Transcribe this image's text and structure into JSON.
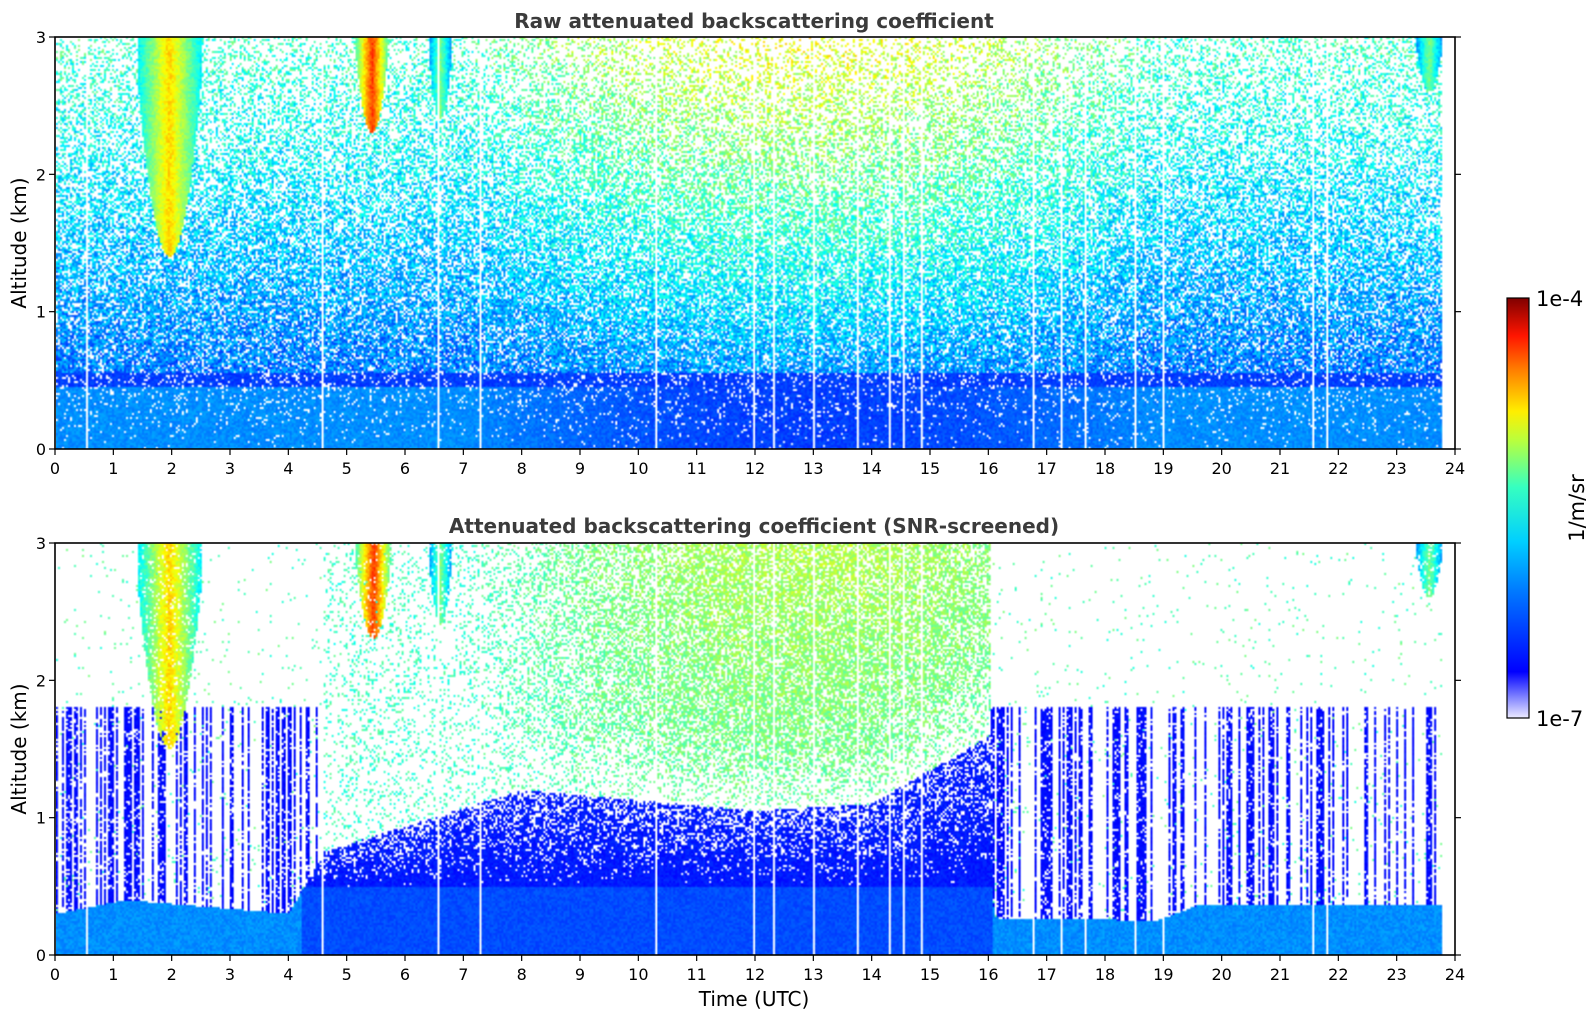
{
  "figure": {
    "xlabel": "Time (UTC)",
    "colorbar": {
      "label": "1/m/sr",
      "max_label": "1e-4",
      "min_label": "1e-7",
      "scale": "log",
      "colormap": "jet",
      "range": [
        1e-07,
        0.0001
      ]
    }
  },
  "chart_data": [
    {
      "type": "heatmap",
      "title": "Raw attenuated backscattering coefficient",
      "xlabel": "",
      "ylabel": "Altitude (km)",
      "xlim": [
        0,
        24
      ],
      "ylim": [
        0,
        3
      ],
      "xticks": [
        "0",
        "1",
        "2",
        "3",
        "4",
        "5",
        "6",
        "7",
        "8",
        "9",
        "10",
        "11",
        "12",
        "13",
        "14",
        "15",
        "16",
        "17",
        "18",
        "19",
        "20",
        "21",
        "22",
        "23",
        "24"
      ],
      "yticks": [
        "0",
        "1",
        "2",
        "3"
      ],
      "data_extent_x": [
        0,
        23.8
      ],
      "background_layer": {
        "top_km": 0.5,
        "description": ""
      },
      "cloud_features": [
        {
          "x_start": 1.4,
          "x_end": 2.5,
          "y_bottom": 1.4,
          "y_top": 3.0,
          "peak": "1e-5"
        },
        {
          "x_start": 5.15,
          "x_end": 5.7,
          "y_bottom": 2.3,
          "y_top": 3.0,
          "peak": "3e-5"
        },
        {
          "x_start": 6.4,
          "x_end": 6.8,
          "y_bottom": 2.4,
          "y_top": 3.0,
          "peak": "3e-6"
        },
        {
          "x_start": 23.35,
          "x_end": 23.8,
          "y_bottom": 2.6,
          "y_top": 3.0,
          "peak": "3e-6"
        }
      ],
      "missing_profiles_utc": [
        0.5,
        4.55,
        6.55,
        7.27,
        10.3,
        11.95,
        12.3,
        12.98,
        13.75,
        14.3,
        14.55,
        14.85,
        16.75,
        17.25,
        17.65,
        18.5,
        19.0,
        21.55,
        21.8
      ]
    },
    {
      "type": "heatmap",
      "title": "Attenuated backscattering coefficient (SNR-screened)",
      "xlabel": "Time (UTC)",
      "ylabel": "Altitude (km)",
      "xlim": [
        0,
        24
      ],
      "ylim": [
        0,
        3
      ],
      "xticks": [
        "0",
        "1",
        "2",
        "3",
        "4",
        "5",
        "6",
        "7",
        "8",
        "9",
        "10",
        "11",
        "12",
        "13",
        "14",
        "15",
        "16",
        "17",
        "18",
        "19",
        "20",
        "21",
        "22",
        "23",
        "24"
      ],
      "yticks": [
        "0",
        "1",
        "2",
        "3"
      ],
      "data_extent_x": [
        0,
        23.8
      ],
      "boundary_layer_top_km": [
        {
          "x": 0.0,
          "y": 0.3
        },
        {
          "x": 1.2,
          "y": 0.4
        },
        {
          "x": 4.0,
          "y": 0.3
        },
        {
          "x": 4.6,
          "y": 0.75
        },
        {
          "x": 8.0,
          "y": 1.2
        },
        {
          "x": 12.0,
          "y": 1.05
        },
        {
          "x": 14.0,
          "y": 1.1
        },
        {
          "x": 16.05,
          "y": 1.6
        },
        {
          "x": 16.1,
          "y": 0.27
        },
        {
          "x": 18.9,
          "y": 0.25
        },
        {
          "x": 19.6,
          "y": 0.36
        },
        {
          "x": 23.8,
          "y": 0.36
        }
      ],
      "cloud_features": [
        {
          "x_start": 1.4,
          "x_end": 2.5,
          "y_bottom": 1.5,
          "y_top": 3.0,
          "peak": "1e-5"
        },
        {
          "x_start": 5.15,
          "x_end": 5.75,
          "y_bottom": 2.3,
          "y_top": 3.0,
          "peak": "3e-5"
        },
        {
          "x_start": 6.4,
          "x_end": 6.8,
          "y_bottom": 2.4,
          "y_top": 3.0,
          "peak": "3e-6"
        },
        {
          "x_start": 23.35,
          "x_end": 23.8,
          "y_bottom": 2.6,
          "y_top": 3.0,
          "peak": "3e-6"
        }
      ],
      "missing_profiles_utc": [
        0.5,
        4.55,
        6.55,
        7.27,
        10.3,
        11.95,
        12.3,
        12.98,
        13.75,
        14.3,
        14.55,
        14.85,
        16.75,
        17.25,
        17.65,
        18.5,
        19.0,
        21.55,
        21.8
      ]
    }
  ]
}
